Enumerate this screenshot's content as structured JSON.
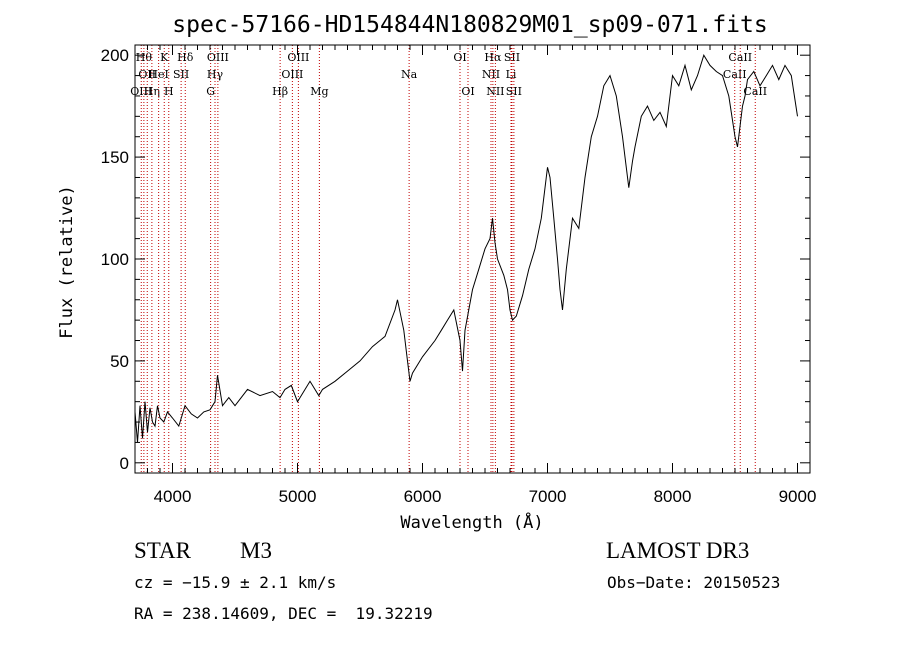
{
  "chart_data": {
    "type": "line",
    "title": "spec-57166-HD154844N180829M01_sp09-071.fits",
    "xlabel": "Wavelength (Å)",
    "ylabel": "Flux (relative)",
    "xlim": [
      3700,
      9100
    ],
    "ylim": [
      -5,
      205
    ],
    "xticks": [
      4000,
      5000,
      6000,
      7000,
      8000,
      9000
    ],
    "yticks": [
      0,
      50,
      100,
      150,
      200
    ],
    "series": [
      {
        "name": "flux",
        "x": [
          3700,
          3720,
          3740,
          3760,
          3780,
          3800,
          3820,
          3840,
          3860,
          3880,
          3900,
          3930,
          3960,
          4000,
          4050,
          4100,
          4150,
          4200,
          4250,
          4300,
          4340,
          4360,
          4400,
          4450,
          4500,
          4600,
          4700,
          4800,
          4860,
          4900,
          4950,
          5000,
          5100,
          5170,
          5200,
          5300,
          5400,
          5500,
          5600,
          5700,
          5780,
          5800,
          5850,
          5880,
          5900,
          5920,
          6000,
          6100,
          6150,
          6200,
          6250,
          6300,
          6320,
          6340,
          6400,
          6450,
          6500,
          6540,
          6560,
          6580,
          6600,
          6650,
          6680,
          6700,
          6720,
          6750,
          6800,
          6850,
          6900,
          6950,
          7000,
          7020,
          7050,
          7080,
          7100,
          7120,
          7150,
          7200,
          7250,
          7300,
          7350,
          7400,
          7450,
          7500,
          7550,
          7600,
          7620,
          7650,
          7680,
          7700,
          7750,
          7800,
          7850,
          7900,
          7950,
          8000,
          8050,
          8100,
          8150,
          8200,
          8250,
          8300,
          8350,
          8400,
          8450,
          8500,
          8520,
          8540,
          8560,
          8580,
          8600,
          8650,
          8700,
          8750,
          8800,
          8850,
          8900,
          8950,
          8980,
          9000
        ],
        "values": [
          25,
          10,
          28,
          12,
          30,
          15,
          27,
          20,
          18,
          28,
          22,
          20,
          25,
          22,
          18,
          28,
          24,
          22,
          25,
          26,
          30,
          43,
          28,
          32,
          28,
          36,
          33,
          35,
          32,
          36,
          38,
          30,
          40,
          33,
          36,
          40,
          45,
          50,
          57,
          62,
          75,
          80,
          65,
          50,
          40,
          44,
          52,
          60,
          65,
          70,
          75,
          60,
          45,
          65,
          85,
          95,
          105,
          110,
          120,
          108,
          100,
          92,
          85,
          75,
          70,
          72,
          82,
          95,
          105,
          120,
          145,
          140,
          120,
          100,
          85,
          75,
          95,
          120,
          115,
          140,
          160,
          170,
          185,
          190,
          180,
          160,
          150,
          135,
          148,
          155,
          170,
          175,
          168,
          172,
          165,
          190,
          185,
          195,
          183,
          190,
          200,
          195,
          192,
          190,
          180,
          160,
          155,
          165,
          175,
          180,
          188,
          192,
          185,
          190,
          195,
          188,
          195,
          190,
          178,
          170
        ]
      }
    ],
    "lines": [
      {
        "w": 3750,
        "label": "OIII",
        "row": 2
      },
      {
        "w": 3771,
        "label": "Hθ",
        "row": 0
      },
      {
        "w": 3798,
        "label": "OII",
        "row": 1
      },
      {
        "w": 3835,
        "label": "Hη",
        "row": 2
      },
      {
        "w": 3889,
        "label": "HeI",
        "row": 1
      },
      {
        "w": 3934,
        "label": "K",
        "row": 0
      },
      {
        "w": 3970,
        "label": "H",
        "row": 2
      },
      {
        "w": 4069,
        "label": "SII",
        "row": 1
      },
      {
        "w": 4102,
        "label": "Hδ",
        "row": 0
      },
      {
        "w": 4305,
        "label": "G",
        "row": 2
      },
      {
        "w": 4340,
        "label": "Hγ",
        "row": 1
      },
      {
        "w": 4363,
        "label": "OIII",
        "row": 0
      },
      {
        "w": 4861,
        "label": "Hβ",
        "row": 2
      },
      {
        "w": 4959,
        "label": "OIII",
        "row": 1
      },
      {
        "w": 5007,
        "label": "OIII",
        "row": 0
      },
      {
        "w": 5175,
        "label": "Mg",
        "row": 2
      },
      {
        "w": 5893,
        "label": "Na",
        "row": 1
      },
      {
        "w": 6300,
        "label": "OI",
        "row": 0
      },
      {
        "w": 6364,
        "label": "OI",
        "row": 2
      },
      {
        "w": 6548,
        "label": "NII",
        "row": 1
      },
      {
        "w": 6563,
        "label": "Hα",
        "row": 0
      },
      {
        "w": 6583,
        "label": "NII",
        "row": 2
      },
      {
        "w": 6708,
        "label": "Li",
        "row": 1
      },
      {
        "w": 6716,
        "label": "SII",
        "row": 0
      },
      {
        "w": 6731,
        "label": "SII",
        "row": 2
      },
      {
        "w": 8498,
        "label": "CaII",
        "row": 1
      },
      {
        "w": 8542,
        "label": "CaII",
        "row": 0
      },
      {
        "w": 8662,
        "label": "CaII",
        "row": 2
      }
    ]
  },
  "info": {
    "object_type": "STAR",
    "subclass": "M3",
    "survey": "LAMOST DR3",
    "cz_line": "cz = −15.9 ± 2.1 km/s",
    "obs_date_line": "Obs−Date: 20150523",
    "coords_line": "RA = 238.14609, DEC =  19.32219"
  }
}
